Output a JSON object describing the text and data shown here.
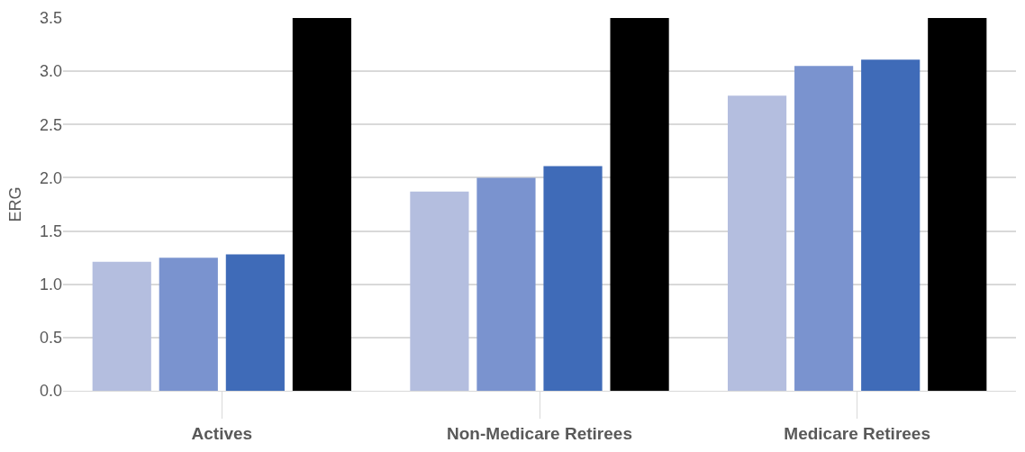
{
  "chart_data": {
    "type": "bar",
    "ylabel": "ERG",
    "categories": [
      "Actives",
      "Non-Medicare Retirees",
      "Medicare Retirees"
    ],
    "series": [
      {
        "color": "#b4bedf",
        "values": [
          1.21,
          1.87,
          2.77
        ]
      },
      {
        "color": "#7a93cf",
        "values": [
          1.25,
          2.0,
          3.05
        ]
      },
      {
        "color": "#3f6bb8",
        "values": [
          1.28,
          2.11,
          3.11
        ]
      },
      {
        "color": "#000000",
        "values": [
          3.5,
          3.5,
          3.5
        ]
      }
    ],
    "ylim": [
      0,
      3.5
    ],
    "yticks": [
      {
        "value": 0,
        "label": "0.0"
      },
      {
        "value": 0.5,
        "label": "0.5"
      },
      {
        "value": 1,
        "label": "1.0"
      },
      {
        "value": 1.5,
        "label": "1.5"
      },
      {
        "value": 2,
        "label": "2.0"
      },
      {
        "value": 2.5,
        "label": "2.5"
      },
      {
        "value": 3,
        "label": "3.0"
      },
      {
        "value": 3.5,
        "label": "3.5"
      }
    ],
    "grid": "y"
  }
}
